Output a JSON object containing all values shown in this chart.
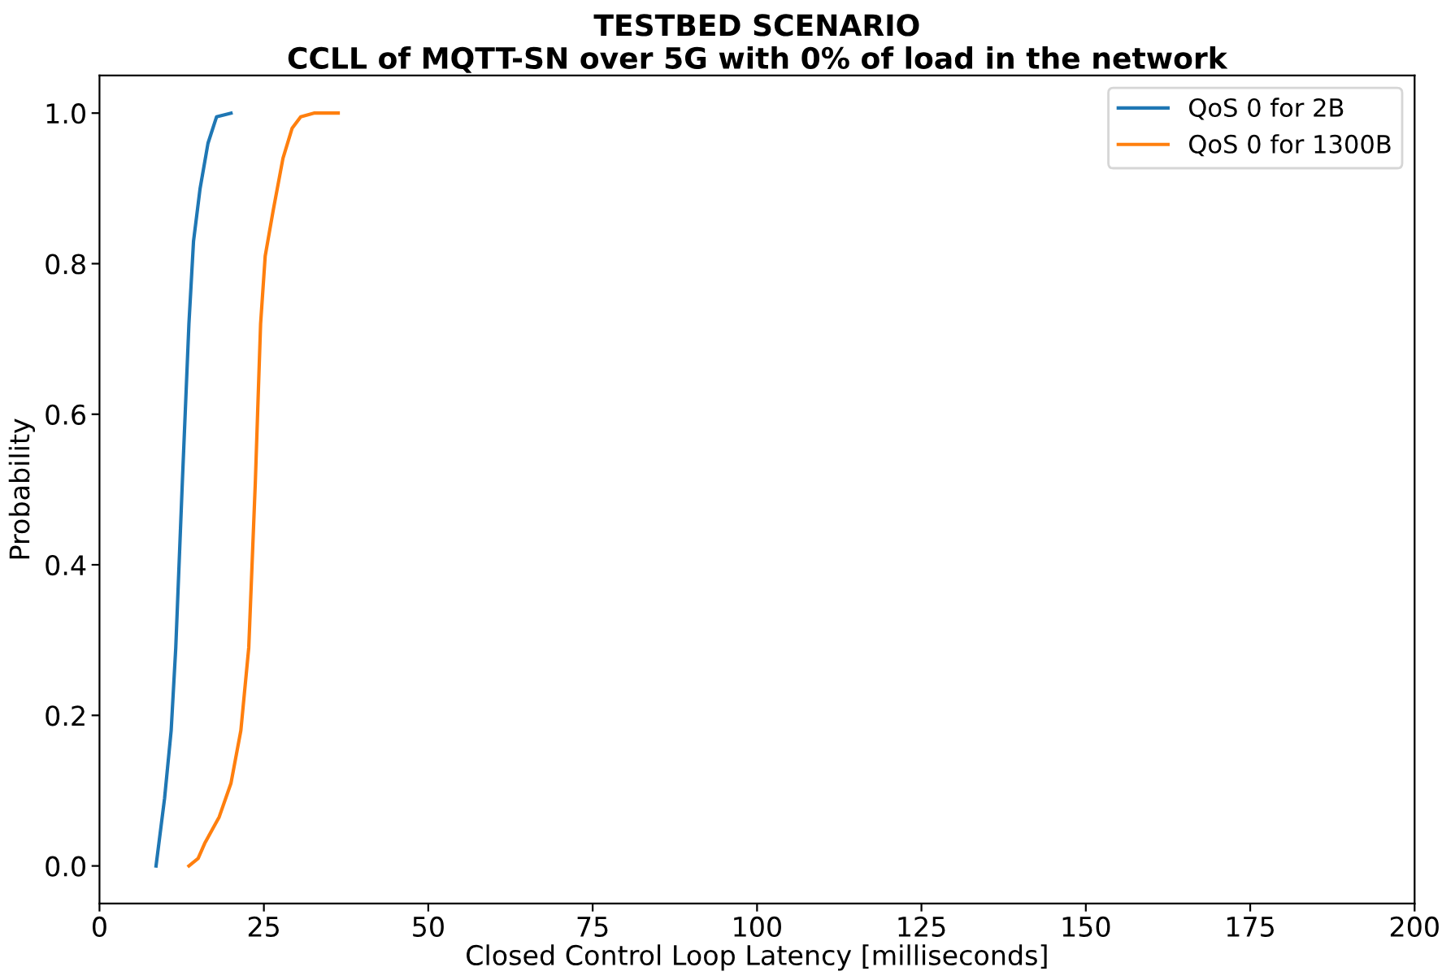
{
  "chart_data": {
    "type": "line",
    "title": "TESTBED SCENARIO\nCCLL of MQTT-SN over 5G with 0% of load in the network",
    "xlabel": "Closed Control Loop Latency [milliseconds]",
    "ylabel": "Probability",
    "xlim": [
      0,
      200
    ],
    "xticks": [
      0,
      25,
      50,
      75,
      100,
      125,
      150,
      175,
      200
    ],
    "ylim": [
      -0.05,
      1.05
    ],
    "yticks": [
      {
        "value": 0,
        "label": "0.0"
      },
      {
        "value": 0.2,
        "label": "0.2"
      },
      {
        "value": 0.4,
        "label": "0.4"
      },
      {
        "value": 0.6,
        "label": "0.6"
      },
      {
        "value": 0.8,
        "label": "0.8"
      },
      {
        "value": 1,
        "label": "1.0"
      }
    ],
    "grid": false,
    "legend": "top right",
    "marker": "none",
    "line_style": "solid",
    "series": [
      {
        "name": "QoS 0 for 2B",
        "color": "#1f77b4",
        "x": [
          8.6,
          9.9,
          10.9,
          11.6,
          12.6,
          13.6,
          14.3,
          15.3,
          16.5,
          17.8,
          20.0
        ],
        "values": [
          0.0,
          0.09,
          0.18,
          0.29,
          0.51,
          0.72,
          0.83,
          0.9,
          0.96,
          0.995,
          1.0
        ]
      },
      {
        "name": "QoS 0 for 1300B",
        "color": "#ff7f0e",
        "x": [
          13.6,
          15.0,
          16.0,
          18.2,
          20.0,
          21.5,
          22.7,
          23.7,
          24.5,
          25.2,
          26.4,
          27.9,
          29.3,
          30.6,
          32.6,
          36.3
        ],
        "values": [
          0.0,
          0.01,
          0.03,
          0.065,
          0.11,
          0.18,
          0.29,
          0.51,
          0.72,
          0.81,
          0.87,
          0.94,
          0.98,
          0.995,
          1.0,
          1.0
        ]
      }
    ]
  }
}
